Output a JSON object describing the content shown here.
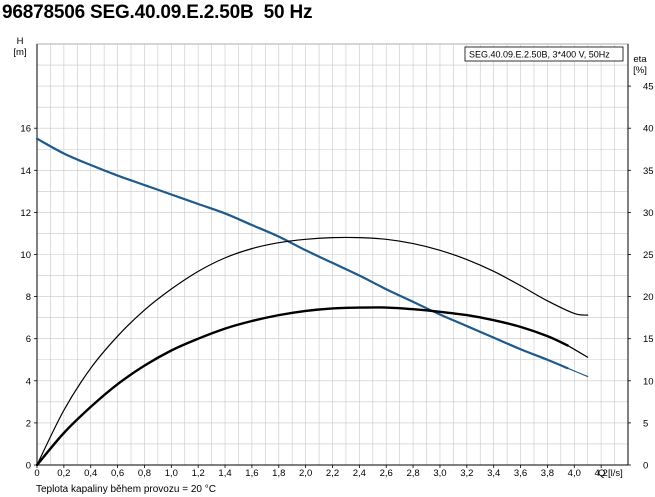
{
  "page": {
    "title": "96878506 SEG.40.09.E.2.50B  50 Hz",
    "footnote": "Teplota kapaliny během provozu = 20 °C"
  },
  "chart_data": {
    "type": "line",
    "legend_box": "SEG.40.09.E.2.50B, 3*400 V, 50Hz",
    "left_axis": {
      "label_top": "H",
      "label_unit": "[m]",
      "ticks": [
        0,
        2,
        4,
        6,
        8,
        10,
        12,
        14,
        16
      ],
      "ylim": [
        0,
        20
      ]
    },
    "right_axis": {
      "label_top": "eta",
      "label_unit": "[%]",
      "ticks": [
        0,
        5,
        10,
        15,
        20,
        25,
        30,
        35,
        40,
        45
      ],
      "ylim": [
        0,
        50
      ]
    },
    "x_axis": {
      "ticks": [
        "0",
        "0,2",
        "0,4",
        "0,6",
        "0,8",
        "1,0",
        "1,2",
        "1,4",
        "1,6",
        "1,8",
        "2,0",
        "2,2",
        "2,4",
        "2,6",
        "2,8",
        "3,0",
        "3,2",
        "3,4",
        "3,6",
        "3,8",
        "4,0",
        "4,2"
      ],
      "label": "Q [l/s]",
      "xlim": [
        0,
        4.4
      ]
    },
    "grid": true,
    "series": [
      {
        "axis": "left",
        "color": "#1f5a8c",
        "width": 2.2,
        "x": [
          0,
          0.2,
          0.4,
          0.6,
          0.8,
          1.0,
          1.2,
          1.4,
          1.6,
          1.8,
          2.0,
          2.2,
          2.4,
          2.6,
          2.8,
          3.0,
          3.2,
          3.4,
          3.6,
          3.8,
          3.95
        ],
        "values": [
          15.5,
          14.8,
          14.25,
          13.75,
          13.3,
          12.85,
          12.4,
          11.95,
          11.4,
          10.85,
          10.2,
          9.6,
          9.0,
          8.35,
          7.75,
          7.15,
          6.6,
          6.05,
          5.5,
          5.0,
          4.6
        ]
      },
      {
        "axis": "left",
        "color": "#1f5a8c",
        "width": 1.2,
        "x": [
          3.95,
          4.1
        ],
        "values": [
          4.6,
          4.2
        ]
      },
      {
        "axis": "right",
        "color": "#000000",
        "width": 1.2,
        "x": [
          0,
          0.2,
          0.4,
          0.6,
          0.8,
          1.0,
          1.2,
          1.4,
          1.6,
          1.8,
          2.0,
          2.2,
          2.4,
          2.6,
          2.8,
          3.0,
          3.2,
          3.4,
          3.6,
          3.8,
          4.0,
          4.1
        ],
        "values": [
          0,
          6.5,
          11.5,
          15.3,
          18.4,
          20.9,
          23.0,
          24.6,
          25.7,
          26.4,
          26.8,
          27.0,
          27.0,
          26.8,
          26.3,
          25.5,
          24.4,
          23.0,
          21.3,
          19.5,
          18.0,
          17.8
        ]
      },
      {
        "axis": "right",
        "color": "#000000",
        "width": 2.4,
        "x": [
          0,
          0.2,
          0.4,
          0.6,
          0.8,
          1.0,
          1.2,
          1.4,
          1.6,
          1.8,
          2.0,
          2.2,
          2.4,
          2.6,
          2.8,
          3.0,
          3.2,
          3.4,
          3.6,
          3.8,
          3.95
        ],
        "values": [
          0,
          3.8,
          6.9,
          9.6,
          11.8,
          13.6,
          15.0,
          16.2,
          17.1,
          17.8,
          18.3,
          18.6,
          18.7,
          18.7,
          18.5,
          18.2,
          17.8,
          17.2,
          16.4,
          15.3,
          14.2
        ]
      },
      {
        "axis": "right",
        "color": "#000000",
        "width": 1.2,
        "x": [
          3.95,
          4.1
        ],
        "values": [
          14.2,
          12.8
        ]
      }
    ]
  }
}
